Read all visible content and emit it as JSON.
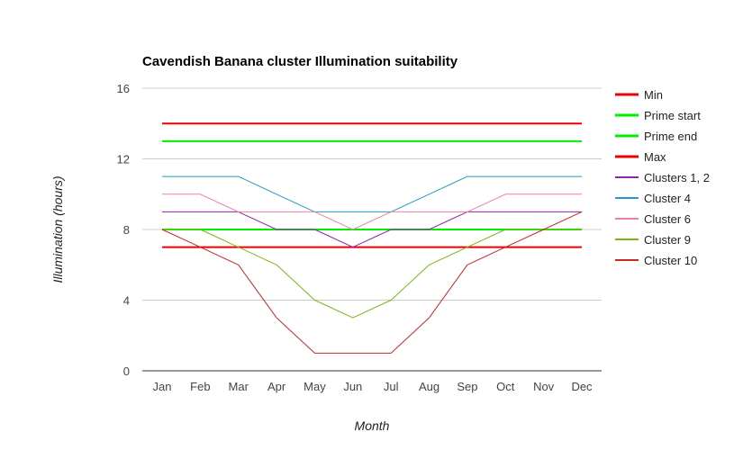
{
  "chart_data": {
    "type": "line",
    "title": "Cavendish Banana cluster Illumination suitability",
    "xlabel": "Month",
    "ylabel": "Illumination (hours)",
    "ylim": [
      0,
      16
    ],
    "yticks": [
      0,
      4,
      8,
      12,
      16
    ],
    "grid": true,
    "legend_position": "right",
    "categories": [
      "Jan",
      "Feb",
      "Mar",
      "Apr",
      "May",
      "Jun",
      "Jul",
      "Aug",
      "Sep",
      "Oct",
      "Nov",
      "Dec"
    ],
    "series": [
      {
        "name": "Min",
        "color": "#ee0000",
        "width": 2,
        "values": [
          7,
          7,
          7,
          7,
          7,
          7,
          7,
          7,
          7,
          7,
          7,
          7
        ]
      },
      {
        "name": "Prime start",
        "color": "#00ee00",
        "width": 2,
        "values": [
          8,
          8,
          8,
          8,
          8,
          8,
          8,
          8,
          8,
          8,
          8,
          8
        ]
      },
      {
        "name": "Prime end",
        "color": "#00ee00",
        "width": 2,
        "values": [
          13,
          13,
          13,
          13,
          13,
          13,
          13,
          13,
          13,
          13,
          13,
          13
        ]
      },
      {
        "name": "Max",
        "color": "#ee0000",
        "width": 2,
        "values": [
          14,
          14,
          14,
          14,
          14,
          14,
          14,
          14,
          14,
          14,
          14,
          14
        ]
      },
      {
        "name": "Clusters 1, 2",
        "color": "#8e24aa",
        "width": 1,
        "values": [
          9,
          9,
          9,
          8,
          8,
          7,
          8,
          8,
          9,
          9,
          9,
          9
        ]
      },
      {
        "name": "Cluster 4",
        "color": "#1e9cc7",
        "width": 1,
        "values": [
          11,
          11,
          11,
          10,
          9,
          9,
          9,
          10,
          11,
          11,
          11,
          11
        ]
      },
      {
        "name": "Cluster 6",
        "color": "#ef7fa6",
        "width": 1,
        "values": [
          10,
          10,
          9,
          9,
          9,
          8,
          9,
          9,
          9,
          10,
          10,
          10
        ]
      },
      {
        "name": "Cluster 9",
        "color": "#7cb518",
        "width": 1,
        "values": [
          8,
          8,
          7,
          6,
          4,
          3,
          4,
          6,
          7,
          8,
          8,
          8
        ]
      },
      {
        "name": "Cluster 10",
        "color": "#c62828",
        "width": 1,
        "values": [
          8,
          7,
          6,
          3,
          1,
          1,
          1,
          3,
          6,
          7,
          8,
          9
        ]
      }
    ]
  }
}
